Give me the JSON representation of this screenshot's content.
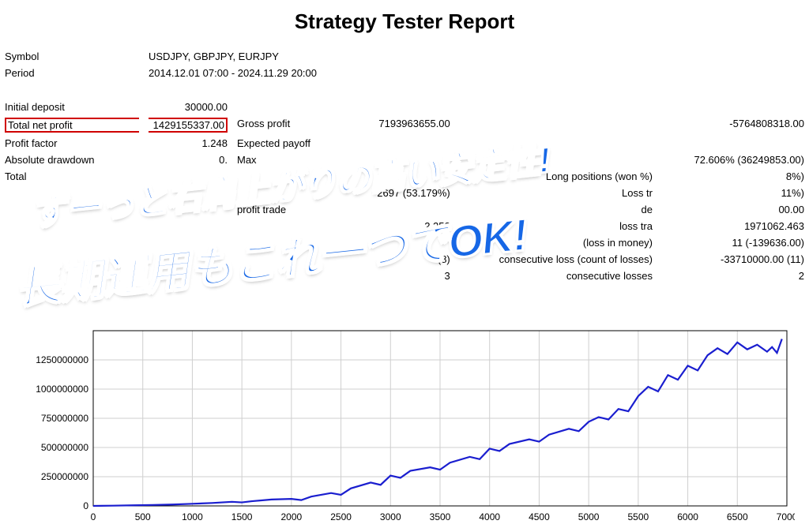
{
  "title": "Strategy Tester Report",
  "meta": {
    "symbol_label": "Symbol",
    "symbol_value": "USDJPY, GBPJPY, EURJPY",
    "period_label": "Period",
    "period_value": "2014.12.01 07:00 - 2024.11.29 20:00"
  },
  "rows": [
    {
      "l": "Initial deposit",
      "v": "30000.00"
    },
    {
      "l": "Total net profit",
      "v": "1429155337.00",
      "l2": "Gross profit",
      "v2": "7193963655.00",
      "l3": "",
      "v3": "-5764808318.00",
      "hl": true
    },
    {
      "l": "Profit factor",
      "v": "1.248",
      "l2": "Expected payoff",
      "v2": "",
      "l3": "",
      "v3": ""
    },
    {
      "l": "Absolute drawdown",
      "v": "0.",
      "l2": "Max",
      "v2": "",
      "l3": "",
      "v3": "72.606% (36249853.00)"
    },
    {
      "l": "Total",
      "v": "",
      "l2": "",
      "v2": "",
      "l3": "Long positions (won %)",
      "v3": "8%)"
    },
    {
      "l": "",
      "v": "",
      "l2": "",
      "v2": "2697 (53.179%)",
      "l3": "Loss tr",
      "v3": "11%)"
    },
    {
      "l": "",
      "v": "",
      "l2": "profit trade",
      "v2": "",
      "l3": "de",
      "v3": "00.00"
    },
    {
      "l": "",
      "v": "",
      "l2": "",
      "v2": "2.252",
      "l3": "loss tra",
      "v3": "1971062.463"
    },
    {
      "l": "",
      "v": "",
      "l2": "",
      "v2": "",
      "l3": "(loss in money)",
      "v3": "11 (-139636.00)"
    },
    {
      "l": "",
      "v": "",
      "l2": "",
      "v2": "(8)",
      "l3": "consecutive loss (count of losses)",
      "v3": "-33710000.00 (11)"
    },
    {
      "l": "",
      "v": "",
      "l2": "",
      "v2": "3",
      "l3": "consecutive losses",
      "v3": "2"
    }
  ],
  "overlay": {
    "line1": "ずーっと右肩上がりの高い安定性!",
    "line2": "長期運用もこれ一つでOK!",
    "color": "#1667e6",
    "angle_deg": -6,
    "font1": 44,
    "font2": 56
  },
  "chart": {
    "type": "line",
    "x_min": 0,
    "x_max": 7000,
    "x_step": 500,
    "y_min": 0,
    "y_max": 1500000000,
    "y_step": 250000000,
    "y_ticks_labels": [
      "0",
      "250000000",
      "500000000",
      "750000000",
      "1000000000",
      "1250000000",
      ""
    ],
    "line_color": "#1a1ecf",
    "line_width": 2.2,
    "grid_color": "#cfcfcf",
    "axis_color": "#000000",
    "background": "#ffffff",
    "tick_font_size": 12,
    "points": [
      [
        0,
        0
      ],
      [
        200,
        2000000
      ],
      [
        400,
        5000000
      ],
      [
        600,
        8000000
      ],
      [
        800,
        12000000
      ],
      [
        1000,
        18000000
      ],
      [
        1200,
        25000000
      ],
      [
        1400,
        35000000
      ],
      [
        1500,
        30000000
      ],
      [
        1600,
        40000000
      ],
      [
        1800,
        55000000
      ],
      [
        2000,
        60000000
      ],
      [
        2100,
        50000000
      ],
      [
        2200,
        80000000
      ],
      [
        2400,
        110000000
      ],
      [
        2500,
        95000000
      ],
      [
        2600,
        150000000
      ],
      [
        2800,
        200000000
      ],
      [
        2900,
        180000000
      ],
      [
        3000,
        260000000
      ],
      [
        3100,
        240000000
      ],
      [
        3200,
        300000000
      ],
      [
        3400,
        330000000
      ],
      [
        3500,
        310000000
      ],
      [
        3600,
        370000000
      ],
      [
        3800,
        420000000
      ],
      [
        3900,
        400000000
      ],
      [
        4000,
        490000000
      ],
      [
        4100,
        470000000
      ],
      [
        4200,
        530000000
      ],
      [
        4400,
        570000000
      ],
      [
        4500,
        550000000
      ],
      [
        4600,
        610000000
      ],
      [
        4800,
        660000000
      ],
      [
        4900,
        640000000
      ],
      [
        5000,
        720000000
      ],
      [
        5100,
        760000000
      ],
      [
        5200,
        740000000
      ],
      [
        5300,
        830000000
      ],
      [
        5400,
        810000000
      ],
      [
        5500,
        940000000
      ],
      [
        5600,
        1020000000
      ],
      [
        5700,
        980000000
      ],
      [
        5800,
        1120000000
      ],
      [
        5900,
        1080000000
      ],
      [
        6000,
        1200000000
      ],
      [
        6100,
        1160000000
      ],
      [
        6200,
        1290000000
      ],
      [
        6300,
        1350000000
      ],
      [
        6400,
        1300000000
      ],
      [
        6500,
        1400000000
      ],
      [
        6600,
        1340000000
      ],
      [
        6700,
        1380000000
      ],
      [
        6800,
        1320000000
      ],
      [
        6850,
        1360000000
      ],
      [
        6900,
        1310000000
      ],
      [
        6950,
        1429000000
      ]
    ]
  }
}
